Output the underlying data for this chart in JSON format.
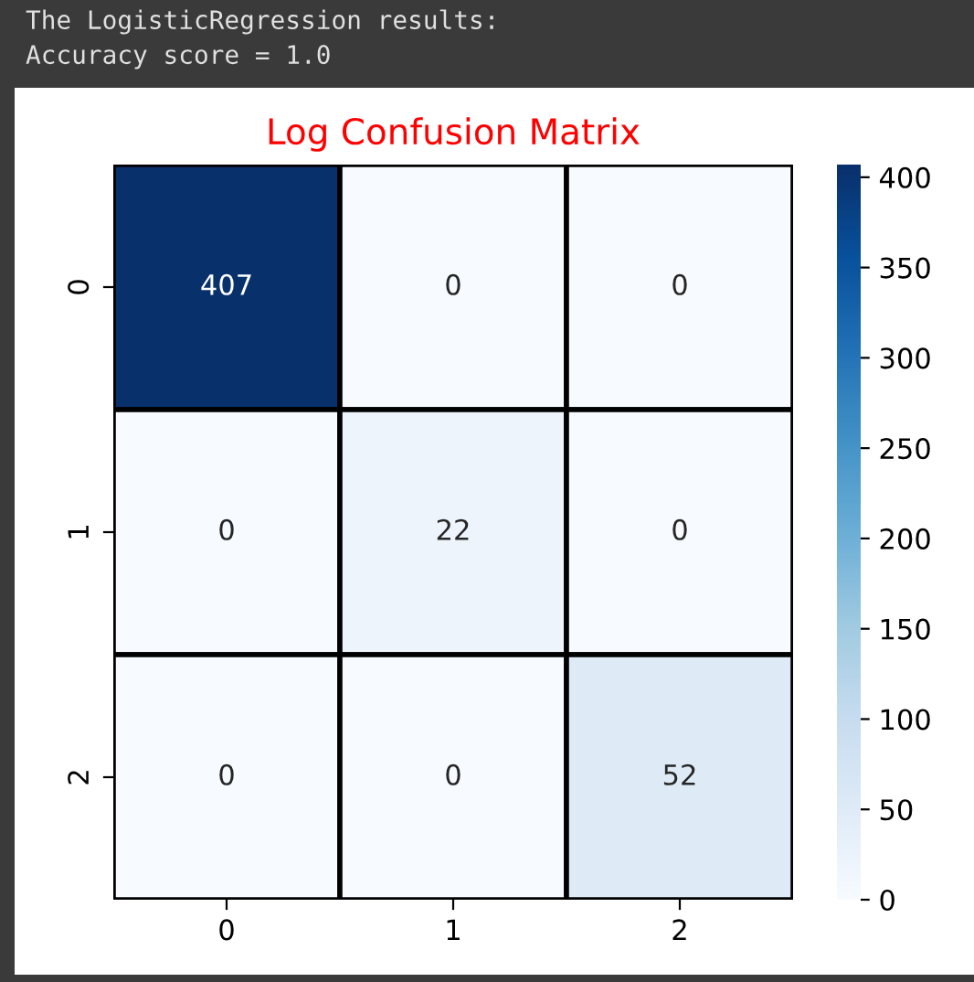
{
  "chart_data": {
    "type": "heatmap",
    "title": "Log Confusion Matrix",
    "annotations": [
      "The LogisticRegression results:",
      "Accuracy score = 1.0"
    ],
    "categories": [
      "0",
      "1",
      "2"
    ],
    "y_categories": [
      "0",
      "1",
      "2"
    ],
    "cells": [
      [
        407,
        0,
        0
      ],
      [
        0,
        22,
        0
      ],
      [
        0,
        0,
        52
      ]
    ],
    "data_labels": true,
    "clim": [
      0,
      407
    ],
    "cticks": [
      0,
      50,
      100,
      150,
      200,
      250,
      300,
      350,
      400
    ]
  }
}
